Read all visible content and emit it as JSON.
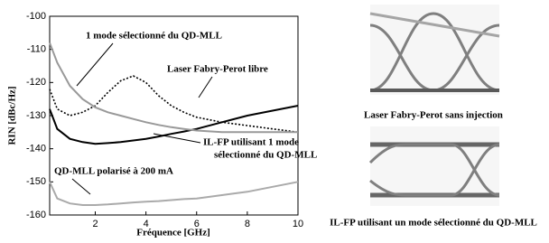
{
  "chart_data": {
    "type": "line",
    "xlabel": "Fréquence [GHz]",
    "ylabel": "RIN [dBc/Hz]",
    "x": [
      0.2,
      0.5,
      1,
      1.5,
      2,
      2.5,
      3,
      3.5,
      4,
      4.5,
      5,
      5.5,
      6,
      7,
      8,
      9,
      10
    ],
    "series": [
      {
        "color": "#000000",
        "style": "dotted",
        "values": [
          -122,
          -128,
          -130,
          -129,
          -127,
          -123,
          -119.5,
          -118,
          -120,
          -124,
          -127,
          -129,
          -130.5,
          -132,
          -133,
          -134,
          -135
        ]
      },
      {
        "color": "#000000",
        "style": "solid",
        "values": [
          -128,
          -134,
          -137,
          -138,
          -138.5,
          -138.3,
          -138,
          -137.5,
          -137,
          -136.3,
          -135.5,
          -134.8,
          -134,
          -132,
          -130,
          -128.5,
          -127
        ]
      },
      {
        "color": "#999999",
        "style": "solid",
        "values": [
          -108,
          -114,
          -121,
          -125,
          -127.5,
          -129,
          -130,
          -131,
          -132,
          -132.8,
          -133.5,
          -134,
          -134.5,
          -135,
          -135,
          -135,
          -135
        ]
      },
      {
        "color": "#aaaaaa",
        "style": "solid",
        "values": [
          -150,
          -155,
          -156.5,
          -157,
          -157,
          -156.8,
          -156.5,
          -156.2,
          -156,
          -155.8,
          -155.5,
          -155.2,
          -155,
          -154,
          -153,
          -151.5,
          -150
        ]
      }
    ],
    "annotations": [
      {
        "lines": [
          "1 mode sélectionné du QD-MLL"
        ]
      },
      {
        "lines": [
          "Laser Fabry-Perot libre"
        ]
      },
      {
        "lines": [
          "IL-FP utilisant 1 mode",
          "sélectionné du QD-MLL"
        ]
      },
      {
        "lines": [
          "QD-MLL polarisé à 200 mA"
        ]
      }
    ],
    "xlim": [
      0.2,
      10
    ],
    "xticks": [
      2,
      4,
      6,
      8,
      10
    ],
    "ylim": [
      -160,
      -100
    ],
    "yticks": [
      -100,
      -110,
      -120,
      -130,
      -140,
      -150,
      -160
    ],
    "grid": false
  },
  "eye_diagrams": [
    {
      "caption": "Laser Fabry-Perot sans injection"
    },
    {
      "caption": "IL-FP utilisant un mode sélectionné du QD-MLL"
    }
  ]
}
